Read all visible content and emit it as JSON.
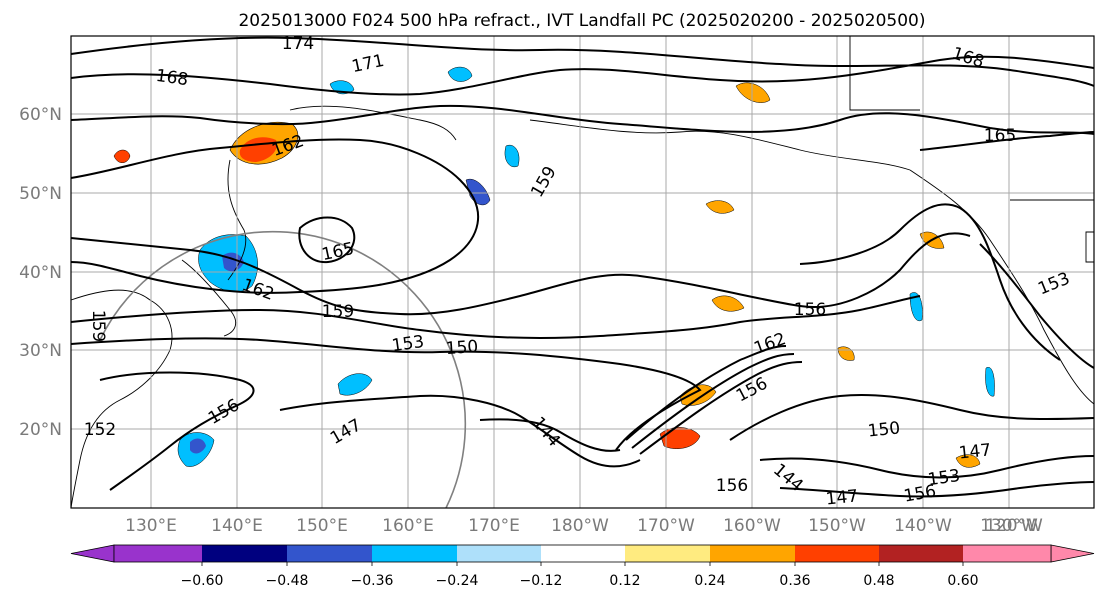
{
  "title": "2025013000 F024 500 hPa refract., IVT Landfall PC (2025020200 - 2025020500)",
  "longitude_labels": [
    "130°E",
    "140°E",
    "150°E",
    "160°E",
    "170°E",
    "180°W",
    "170°W",
    "160°W",
    "150°W",
    "140°W",
    "130°W",
    "120°W"
  ],
  "latitude_labels": [
    "60°N",
    "50°N",
    "40°N",
    "30°N",
    "20°N"
  ],
  "contour_labels": [
    "174",
    "171",
    "168",
    "168",
    "165",
    "162",
    "162",
    "165",
    "159",
    "159",
    "153",
    "150",
    "156",
    "156",
    "147",
    "144",
    "162",
    "156",
    "153",
    "150",
    "153",
    "147",
    "147",
    "156",
    "144",
    "156",
    "159",
    "152"
  ],
  "colorbar": {
    "tick_labels": [
      "−0.60",
      "−0.48",
      "−0.36",
      "−0.24",
      "−0.12",
      "0.12",
      "0.24",
      "0.36",
      "0.48",
      "0.60"
    ],
    "colors": [
      "#9933cc",
      "#00007f",
      "#3355cc",
      "#00bfff",
      "#aee0fa",
      "#ffffff",
      "#ffeb80",
      "#ffa500",
      "#ff4000",
      "#b22222",
      "#ff88aa"
    ]
  },
  "colors": {
    "contour": "#000000",
    "grid": "#a9a9a9",
    "range_ring": "#808080"
  }
}
